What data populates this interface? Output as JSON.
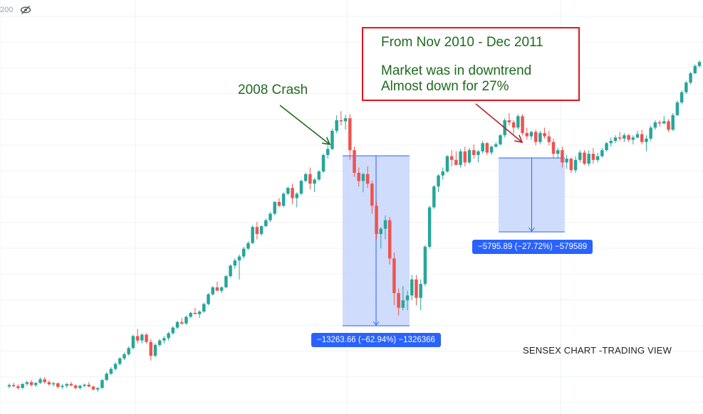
{
  "top_left": {
    "price_fragment": "200",
    "visibility_icon": "eye-off-icon"
  },
  "annotations": {
    "crash_label": "2008 Crash",
    "note_line1": "From Nov 2010 - Dec 2011",
    "note_line2": "Market was in downtrend",
    "note_line3": "Almost down for 27%",
    "source_label": "SENSEX CHART -TRADING VIEW"
  },
  "measurements": {
    "crash": "−13263.66 (−62.94%) −1326366",
    "downtrend": "−5795.89 (−27.72%) −579589"
  },
  "colors": {
    "up_candle": "#26a69a",
    "down_candle": "#ef5350",
    "measure_fill": "#c7d6fb",
    "measure_line": "#2962ff",
    "annotation_text": "#1e6b1e",
    "arrow_green": "#1e6b1e",
    "arrow_red": "#b2232a",
    "note_border": "#e0141e"
  },
  "chart_data": {
    "type": "candlestick",
    "title": "",
    "index": "SENSEX",
    "y_scale": "log",
    "ylim": [
      5000,
      27000
    ],
    "grid": true,
    "series": [
      {
        "candles": [
          [
            5700,
            5780,
            5650,
            5740
          ],
          [
            5740,
            5800,
            5680,
            5710
          ],
          [
            5710,
            5760,
            5620,
            5660
          ],
          [
            5660,
            5790,
            5640,
            5770
          ],
          [
            5770,
            5860,
            5720,
            5820
          ],
          [
            5820,
            5880,
            5700,
            5740
          ],
          [
            5740,
            5820,
            5690,
            5800
          ],
          [
            5800,
            5950,
            5770,
            5900
          ],
          [
            5900,
            5960,
            5780,
            5820
          ],
          [
            5820,
            5870,
            5720,
            5760
          ],
          [
            5760,
            5830,
            5700,
            5790
          ],
          [
            5790,
            5810,
            5650,
            5690
          ],
          [
            5690,
            5760,
            5630,
            5720
          ],
          [
            5720,
            5800,
            5660,
            5770
          ],
          [
            5770,
            5830,
            5700,
            5730
          ],
          [
            5730,
            5760,
            5620,
            5660
          ],
          [
            5660,
            5750,
            5620,
            5720
          ],
          [
            5720,
            5780,
            5680,
            5750
          ],
          [
            5750,
            5820,
            5680,
            5700
          ],
          [
            5700,
            5720,
            5590,
            5620
          ],
          [
            5620,
            5680,
            5560,
            5660
          ],
          [
            5660,
            5900,
            5640,
            5880
          ],
          [
            5880,
            6100,
            5850,
            6060
          ],
          [
            6060,
            6250,
            6020,
            6200
          ],
          [
            6200,
            6400,
            6150,
            6350
          ],
          [
            6350,
            6560,
            6300,
            6520
          ],
          [
            6520,
            6700,
            6470,
            6650
          ],
          [
            6650,
            6900,
            6600,
            6850
          ],
          [
            6850,
            7300,
            6800,
            7250
          ],
          [
            7250,
            7500,
            7000,
            7100
          ],
          [
            7100,
            7350,
            7000,
            7300
          ],
          [
            7300,
            7350,
            7000,
            7050
          ],
          [
            7050,
            7150,
            6450,
            6600
          ],
          [
            6600,
            7000,
            6550,
            6950
          ],
          [
            6950,
            7150,
            6900,
            7100
          ],
          [
            7100,
            7250,
            7000,
            7180
          ],
          [
            7180,
            7400,
            7100,
            7350
          ],
          [
            7350,
            7600,
            7300,
            7550
          ],
          [
            7550,
            7800,
            7500,
            7750
          ],
          [
            7750,
            7900,
            7650,
            7700
          ],
          [
            7700,
            8000,
            7650,
            7950
          ],
          [
            7950,
            8150,
            7900,
            8100
          ],
          [
            8100,
            8300,
            8050,
            8050
          ],
          [
            8050,
            8200,
            7900,
            8150
          ],
          [
            8150,
            8500,
            8100,
            8450
          ],
          [
            8450,
            8900,
            8400,
            8850
          ],
          [
            8850,
            9200,
            8800,
            9150
          ],
          [
            9150,
            9400,
            9050,
            9000
          ],
          [
            9000,
            9200,
            8900,
            9150
          ],
          [
            9150,
            9700,
            9100,
            9650
          ],
          [
            9650,
            10200,
            9600,
            10150
          ],
          [
            10150,
            10500,
            10000,
            10400
          ],
          [
            10400,
            10700,
            9500,
            10600
          ],
          [
            10600,
            11100,
            10500,
            11000
          ],
          [
            11000,
            11400,
            10950,
            11300
          ],
          [
            11300,
            12300,
            11250,
            12200
          ],
          [
            12200,
            12500,
            11500,
            11800
          ],
          [
            11800,
            12300,
            11700,
            12250
          ],
          [
            12250,
            12700,
            12200,
            12600
          ],
          [
            12600,
            13100,
            12500,
            13000
          ],
          [
            13000,
            13800,
            12900,
            13750
          ],
          [
            13750,
            14000,
            13400,
            13500
          ],
          [
            13500,
            14400,
            13400,
            14300
          ],
          [
            14300,
            14800,
            14200,
            14700
          ],
          [
            14700,
            15000,
            13600,
            14000
          ],
          [
            14000,
            14400,
            13400,
            14300
          ],
          [
            14300,
            15300,
            14200,
            15200
          ],
          [
            15200,
            15800,
            15100,
            15700
          ],
          [
            15700,
            16200,
            14600,
            15000
          ],
          [
            15000,
            15400,
            14400,
            15300
          ],
          [
            15300,
            16000,
            15200,
            15900
          ],
          [
            15900,
            17300,
            15800,
            17200
          ],
          [
            17200,
            18000,
            16900,
            17700
          ],
          [
            17700,
            19500,
            17600,
            19300
          ],
          [
            19300,
            20800,
            19100,
            20300
          ],
          [
            20300,
            21200,
            19800,
            20200
          ],
          [
            20200,
            20800,
            19400,
            20500
          ],
          [
            20500,
            20900,
            16800,
            17600
          ],
          [
            17600,
            17900,
            15500,
            15800
          ],
          [
            15800,
            16200,
            14800,
            15200
          ],
          [
            15200,
            15800,
            14400,
            15700
          ],
          [
            15700,
            16300,
            14700,
            15000
          ],
          [
            15000,
            15200,
            13000,
            13500
          ],
          [
            13500,
            13800,
            11500,
            11800
          ],
          [
            11800,
            12200,
            11000,
            12100
          ],
          [
            12100,
            12900,
            11500,
            12600
          ],
          [
            12600,
            12800,
            10200,
            10500
          ],
          [
            10500,
            10800,
            8400,
            8900
          ],
          [
            8900,
            9100,
            8000,
            8300
          ],
          [
            8300,
            9200,
            8200,
            8600
          ],
          [
            8600,
            9000,
            8200,
            8800
          ],
          [
            8800,
            9700,
            8600,
            9500
          ],
          [
            9500,
            9700,
            8400,
            8700
          ],
          [
            8700,
            9500,
            8200,
            9300
          ],
          [
            9300,
            11200,
            9200,
            11100
          ],
          [
            11100,
            13500,
            11000,
            13400
          ],
          [
            13400,
            14900,
            13300,
            14800
          ],
          [
            14800,
            15700,
            14400,
            15600
          ],
          [
            15600,
            16200,
            15300,
            15900
          ],
          [
            15900,
            17200,
            15800,
            17100
          ],
          [
            17100,
            17600,
            16300,
            16800
          ],
          [
            16800,
            17500,
            16400,
            16400
          ],
          [
            16400,
            17700,
            16200,
            17500
          ],
          [
            17500,
            17900,
            16300,
            16600
          ],
          [
            16600,
            17800,
            16500,
            17600
          ],
          [
            17600,
            18100,
            16900,
            17200
          ],
          [
            17200,
            17600,
            16600,
            17500
          ],
          [
            17500,
            18400,
            17300,
            18200
          ],
          [
            18200,
            18300,
            17200,
            17400
          ],
          [
            17400,
            18000,
            17200,
            17900
          ],
          [
            17900,
            18300,
            17800,
            18100
          ],
          [
            18100,
            19000,
            18000,
            18900
          ],
          [
            18900,
            20500,
            18700,
            20300
          ],
          [
            20300,
            21000,
            19800,
            20100
          ],
          [
            20100,
            20300,
            19000,
            19600
          ],
          [
            19600,
            20900,
            19400,
            20700
          ],
          [
            20700,
            20900,
            18900,
            19100
          ],
          [
            19100,
            19600,
            18500,
            18800
          ],
          [
            18800,
            19300,
            18500,
            19200
          ],
          [
            19200,
            19400,
            18000,
            18300
          ],
          [
            18300,
            19300,
            18100,
            19100
          ],
          [
            19100,
            19600,
            18600,
            18800
          ],
          [
            18800,
            19300,
            18000,
            18300
          ],
          [
            18300,
            18600,
            17000,
            17300
          ],
          [
            17300,
            17800,
            16900,
            17600
          ],
          [
            17600,
            17900,
            16200,
            16600
          ],
          [
            16600,
            17200,
            16100,
            16900
          ],
          [
            16900,
            17000,
            15800,
            16000
          ],
          [
            16000,
            17100,
            15800,
            16800
          ],
          [
            16800,
            17600,
            16600,
            17400
          ],
          [
            17400,
            17600,
            16400,
            16500
          ],
          [
            16500,
            17600,
            16300,
            17300
          ],
          [
            17300,
            17800,
            16500,
            16800
          ],
          [
            16800,
            17400,
            16600,
            17100
          ],
          [
            17100,
            17800,
            17000,
            17600
          ],
          [
            17600,
            18300,
            17500,
            18200
          ],
          [
            18200,
            18700,
            17900,
            18400
          ],
          [
            18400,
            18900,
            18200,
            18700
          ],
          [
            18700,
            19200,
            18400,
            18600
          ],
          [
            18600,
            19100,
            18300,
            18900
          ],
          [
            18900,
            19000,
            18300,
            18500
          ],
          [
            18500,
            18900,
            18100,
            18700
          ],
          [
            18700,
            19300,
            18600,
            19000
          ],
          [
            19000,
            19400,
            18100,
            18300
          ],
          [
            18300,
            18900,
            17500,
            18600
          ],
          [
            18600,
            19800,
            18400,
            19600
          ],
          [
            19600,
            20300,
            19400,
            20100
          ],
          [
            20100,
            20300,
            19700,
            20000
          ],
          [
            20000,
            20700,
            19900,
            20200
          ],
          [
            20200,
            20400,
            19200,
            19400
          ],
          [
            19400,
            21000,
            19300,
            20800
          ],
          [
            20800,
            22300,
            20700,
            22100
          ],
          [
            22100,
            23400,
            21900,
            23200
          ],
          [
            23200,
            24500,
            23000,
            24300
          ],
          [
            24300,
            25600,
            24100,
            25400
          ],
          [
            25400,
            26500,
            25300,
            26300
          ],
          [
            26300,
            27000,
            26100,
            26800
          ]
        ]
      }
    ]
  }
}
